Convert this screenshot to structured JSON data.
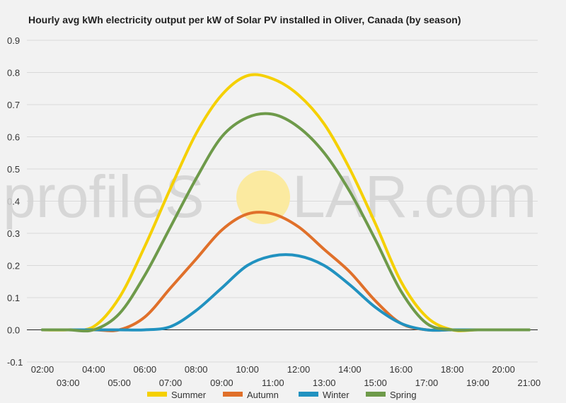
{
  "chart_data": {
    "type": "line",
    "title": "Hourly avg kWh electricity output per kW of Solar PV installed in Oliver, Canada (by season)",
    "xlabel": "",
    "ylabel": "",
    "x": [
      "02:00",
      "03:00",
      "04:00",
      "05:00",
      "06:00",
      "07:00",
      "08:00",
      "09:00",
      "10:00",
      "11:00",
      "12:00",
      "13:00",
      "14:00",
      "15:00",
      "16:00",
      "17:00",
      "18:00",
      "19:00",
      "20:00",
      "21:00"
    ],
    "ylim": [
      -0.1,
      0.9
    ],
    "yticks": [
      "-0.1",
      "0.0",
      "0.1",
      "0.2",
      "0.3",
      "0.4",
      "0.5",
      "0.6",
      "0.7",
      "0.8",
      "0.9"
    ],
    "grid": true,
    "legend_position": "bottom",
    "series": [
      {
        "name": "Summer",
        "color": "#f5d000",
        "values": [
          0.0,
          0.0,
          0.01,
          0.1,
          0.26,
          0.44,
          0.61,
          0.73,
          0.79,
          0.78,
          0.73,
          0.64,
          0.5,
          0.33,
          0.15,
          0.04,
          0.0,
          0.0,
          0.0,
          0.0
        ]
      },
      {
        "name": "Autumn",
        "color": "#e0702a",
        "values": [
          0.0,
          0.0,
          0.0,
          0.0,
          0.04,
          0.13,
          0.22,
          0.31,
          0.36,
          0.36,
          0.32,
          0.25,
          0.18,
          0.09,
          0.02,
          0.0,
          0.0,
          0.0,
          0.0,
          0.0
        ]
      },
      {
        "name": "Winter",
        "color": "#2192c0",
        "values": [
          0.0,
          0.0,
          0.0,
          0.0,
          0.0,
          0.01,
          0.06,
          0.13,
          0.2,
          0.23,
          0.23,
          0.2,
          0.14,
          0.07,
          0.02,
          0.0,
          0.0,
          0.0,
          0.0,
          0.0
        ]
      },
      {
        "name": "Spring",
        "color": "#6e9a4a",
        "values": [
          0.0,
          0.0,
          0.0,
          0.05,
          0.17,
          0.32,
          0.47,
          0.6,
          0.66,
          0.67,
          0.63,
          0.55,
          0.43,
          0.28,
          0.12,
          0.02,
          0.0,
          0.0,
          0.0,
          0.0
        ]
      }
    ]
  },
  "watermark": {
    "left": "profileS",
    "right": "LAR.com",
    "sun_color": "#fbeaa0"
  }
}
